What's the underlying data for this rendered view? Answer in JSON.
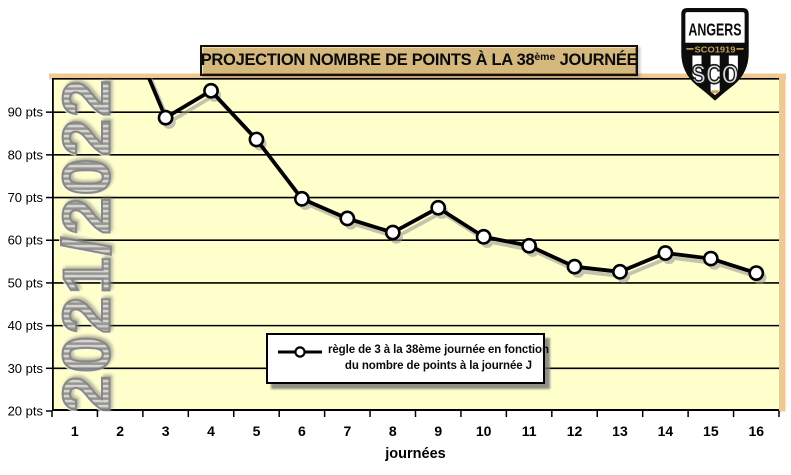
{
  "watermark": {
    "text": "2021/2022"
  },
  "title": {
    "prefix": "PROJECTION NOMBRE DE POINTS À LA 38",
    "superscript": "ème",
    "suffix": " JOURNÉE"
  },
  "logo": {
    "club": "ANGERS",
    "band": "SCO1919",
    "monogram": "SCO"
  },
  "legend": {
    "line1": "règle de 3 à la 38ème journée en fonction",
    "line2": "du nombre de points à la journée J"
  },
  "chart_data": {
    "type": "line",
    "title": "PROJECTION NOMBRE DE POINTS À LA 38ème JOURNÉE",
    "xlabel": "journées",
    "ylabel": "",
    "categories": [
      1,
      2,
      3,
      4,
      5,
      6,
      7,
      8,
      9,
      10,
      11,
      12,
      13,
      14,
      15,
      16
    ],
    "series": [
      {
        "name": "règle de 3 à la 38ème journée en fonction du nombre de points à la journée J",
        "values": [
          null,
          114,
          88.7,
          95,
          83.6,
          69.7,
          65.1,
          61.8,
          67.6,
          60.8,
          58.7,
          53.8,
          52.6,
          57,
          55.7,
          52.3
        ]
      }
    ],
    "ylim": [
      20,
      98
    ],
    "y_ticks": [
      90,
      80,
      70,
      60,
      50,
      40,
      30,
      20
    ],
    "y_tick_labels": [
      "90 pts",
      "80 pts",
      "70 pts",
      "60 pts",
      "50 pts",
      "40 pts",
      "30 pts",
      "20 pts"
    ],
    "grid": "horizontal",
    "legend_position": "inside-bottom-center",
    "marker": "circle-open"
  },
  "colors": {
    "plot_bg": "#FFFFCC",
    "chart_frame": "#F2C892",
    "grid": "#000000",
    "line": "#000000",
    "marker_fill": "#FFFFFF",
    "shadow": "#949494",
    "title_bg": "#D4B87C",
    "watermark_grey": "#8E8E8E",
    "logo_gold": "#C9A14E"
  }
}
